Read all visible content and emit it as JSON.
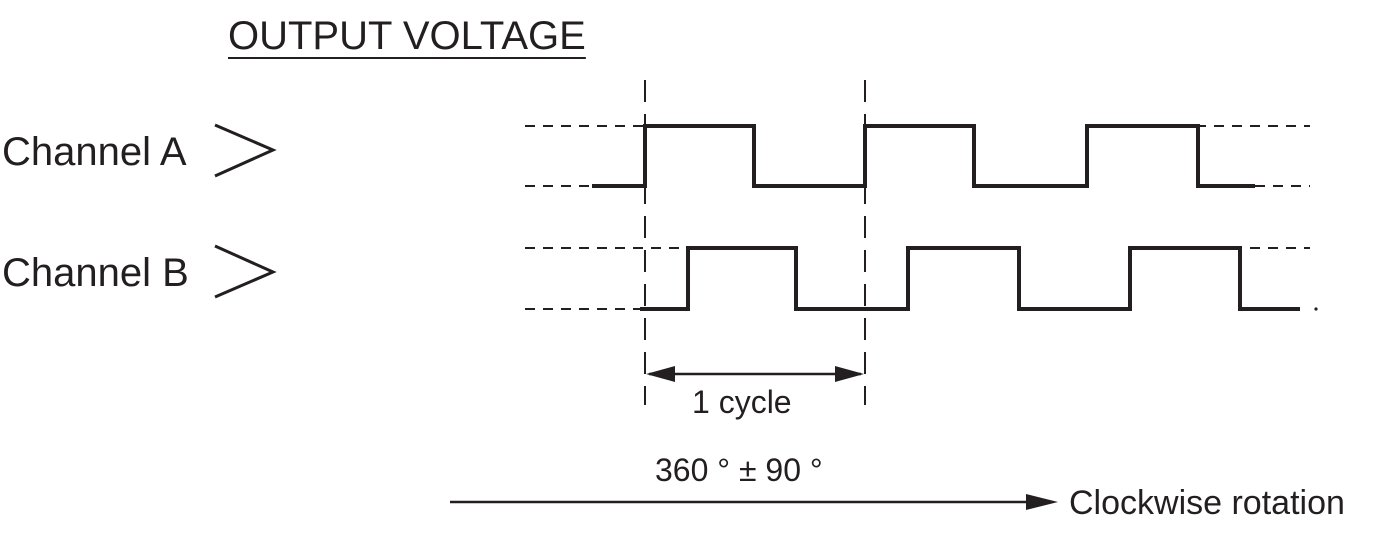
{
  "title": "OUTPUT VOLTAGE",
  "channels": {
    "a_label": "Channel A",
    "b_label": "Channel B"
  },
  "cycle_label": "1 cycle",
  "phase_label": "360 ° ± 90 °",
  "rotation_label": "Clockwise rotation",
  "colors": {
    "ink": "#231f20"
  }
}
